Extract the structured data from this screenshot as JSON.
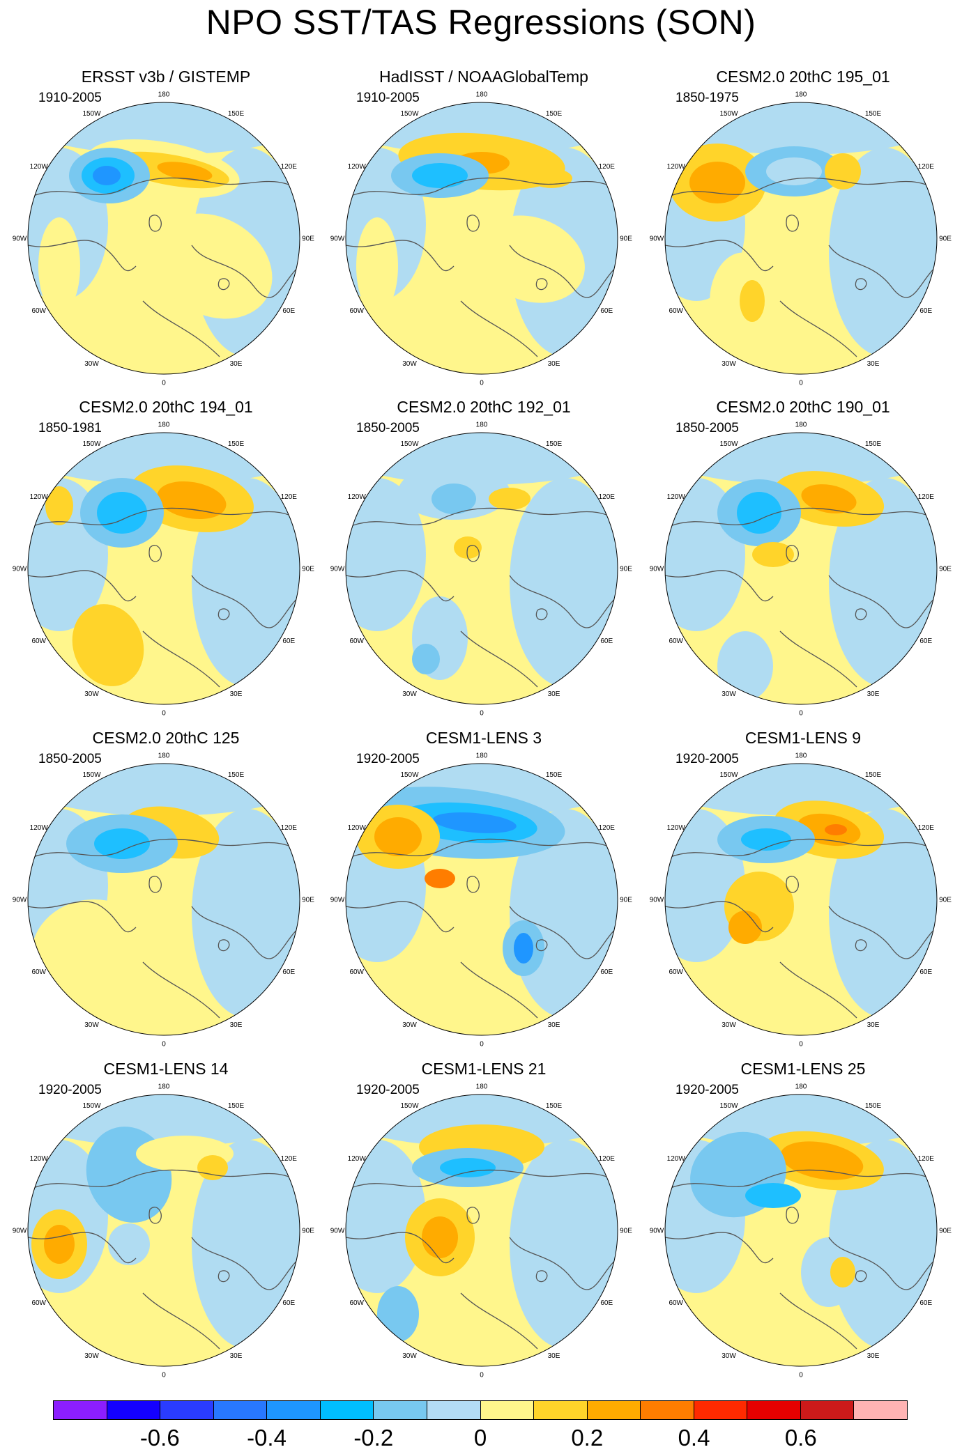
{
  "title": "NPO SST/TAS Regressions (SON)",
  "colors": {
    "pos1": "#fff68c",
    "pos2": "#ffd42a",
    "pos3": "#ffab00",
    "pos4": "#ff7d00",
    "pos5": "#ff2a00",
    "neg1": "#b0dcf2",
    "neg2": "#78c8f0",
    "neg3": "#1ebfff",
    "neg4": "#1f96ff",
    "missing": "#ffffff",
    "coast": "#555555"
  },
  "longitude_labels": [
    "180",
    "150E",
    "120E",
    "90E",
    "60E",
    "30E",
    "0",
    "30W",
    "60W",
    "90W",
    "120W",
    "150W"
  ],
  "panels": [
    {
      "title": "ERSST v3b / GISTEMP",
      "period": "1910-2005"
    },
    {
      "title": "HadISST / NOAAGlobalTemp",
      "period": "1910-2005"
    },
    {
      "title": "CESM2.0 20thC 195_01",
      "period": "1850-1975"
    },
    {
      "title": "CESM2.0 20thC 194_01",
      "period": "1850-1981"
    },
    {
      "title": "CESM2.0 20thC 192_01",
      "period": "1850-2005"
    },
    {
      "title": "CESM2.0 20thC 190_01",
      "period": "1850-2005"
    },
    {
      "title": "CESM2.0 20thC 125",
      "period": "1850-2005"
    },
    {
      "title": "CESM1-LENS 3",
      "period": "1920-2005"
    },
    {
      "title": "CESM1-LENS 9",
      "period": "1920-2005"
    },
    {
      "title": "CESM1-LENS 14",
      "period": "1920-2005"
    },
    {
      "title": "CESM1-LENS 21",
      "period": "1920-2005"
    },
    {
      "title": "CESM1-LENS 25",
      "period": "1920-2005"
    }
  ],
  "colorbar": {
    "colors": [
      "#8c1eff",
      "#1400ff",
      "#2a3cff",
      "#2878ff",
      "#1e96ff",
      "#00beff",
      "#78c8f0",
      "#b4dcf5",
      "#fff68c",
      "#ffd42a",
      "#ffab00",
      "#ff7d00",
      "#ff2a00",
      "#e60000",
      "#cc1a1a",
      "#ffb4b4"
    ],
    "labels": [
      {
        "text": "-0.6",
        "boundary": 2
      },
      {
        "text": "-0.4",
        "boundary": 4
      },
      {
        "text": "-0.2",
        "boundary": 6
      },
      {
        "text": "0",
        "boundary": 8
      },
      {
        "text": "0.2",
        "boundary": 10
      },
      {
        "text": "0.4",
        "boundary": 12
      },
      {
        "text": "0.6",
        "boundary": 14
      }
    ]
  }
}
